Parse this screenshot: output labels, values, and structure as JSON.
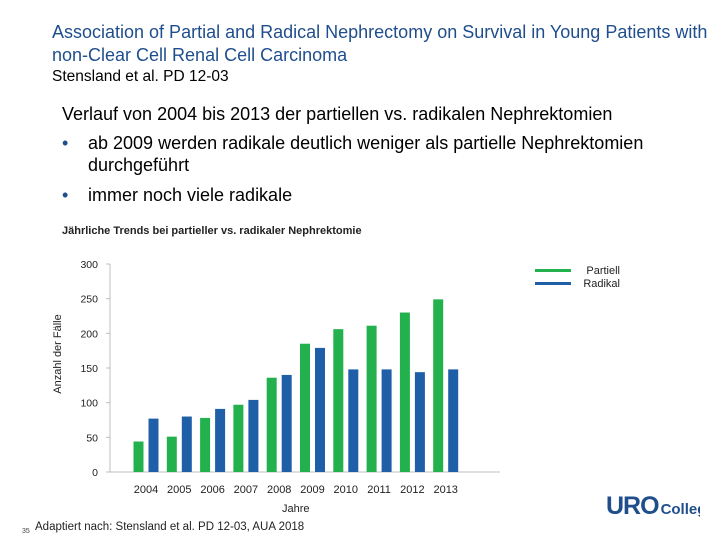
{
  "header": {
    "title": "Association of Partial and Radical Nephrectomy on Survival in Young Patients with non-Clear Cell Renal Cell Carcinoma",
    "subtitle": "Stensland et al. PD 12-03"
  },
  "body": {
    "intro": "Verlauf von 2004 bis 2013 der partiellen vs. radikalen Nephrektomien",
    "bullets": [
      "ab 2009 werden radikale deutlich weniger als partielle Nephrektomien durchgeführt",
      "immer noch viele radikale"
    ],
    "bullet_symbol": "•"
  },
  "chart_data": {
    "type": "bar",
    "title": "Jährliche Trends bei partieller vs. radikaler Nephrektomie",
    "xlabel": "Jahre",
    "ylabel": "Anzahl der Fälle",
    "categories": [
      "2004",
      "2005",
      "2006",
      "2007",
      "2008",
      "2009",
      "2010",
      "2011",
      "2012",
      "2013"
    ],
    "series": [
      {
        "name": "Partiell",
        "color": "#22b14c",
        "values": [
          44,
          51,
          78,
          97,
          136,
          185,
          206,
          211,
          230,
          249
        ]
      },
      {
        "name": "Radikal",
        "color": "#1f5fa8",
        "values": [
          77,
          80,
          91,
          104,
          140,
          179,
          148,
          148,
          144,
          148
        ]
      }
    ],
    "ylim": [
      0,
      300
    ],
    "yticks": [
      0,
      50,
      100,
      150,
      200,
      250,
      300
    ],
    "grid": false,
    "legend_position": "top-right"
  },
  "footer": {
    "source": "Adaptiert nach: Stensland et al. PD 12-03, AUA 2018",
    "page_number": "35",
    "logo_bold": "URO",
    "logo_rest": "College"
  }
}
